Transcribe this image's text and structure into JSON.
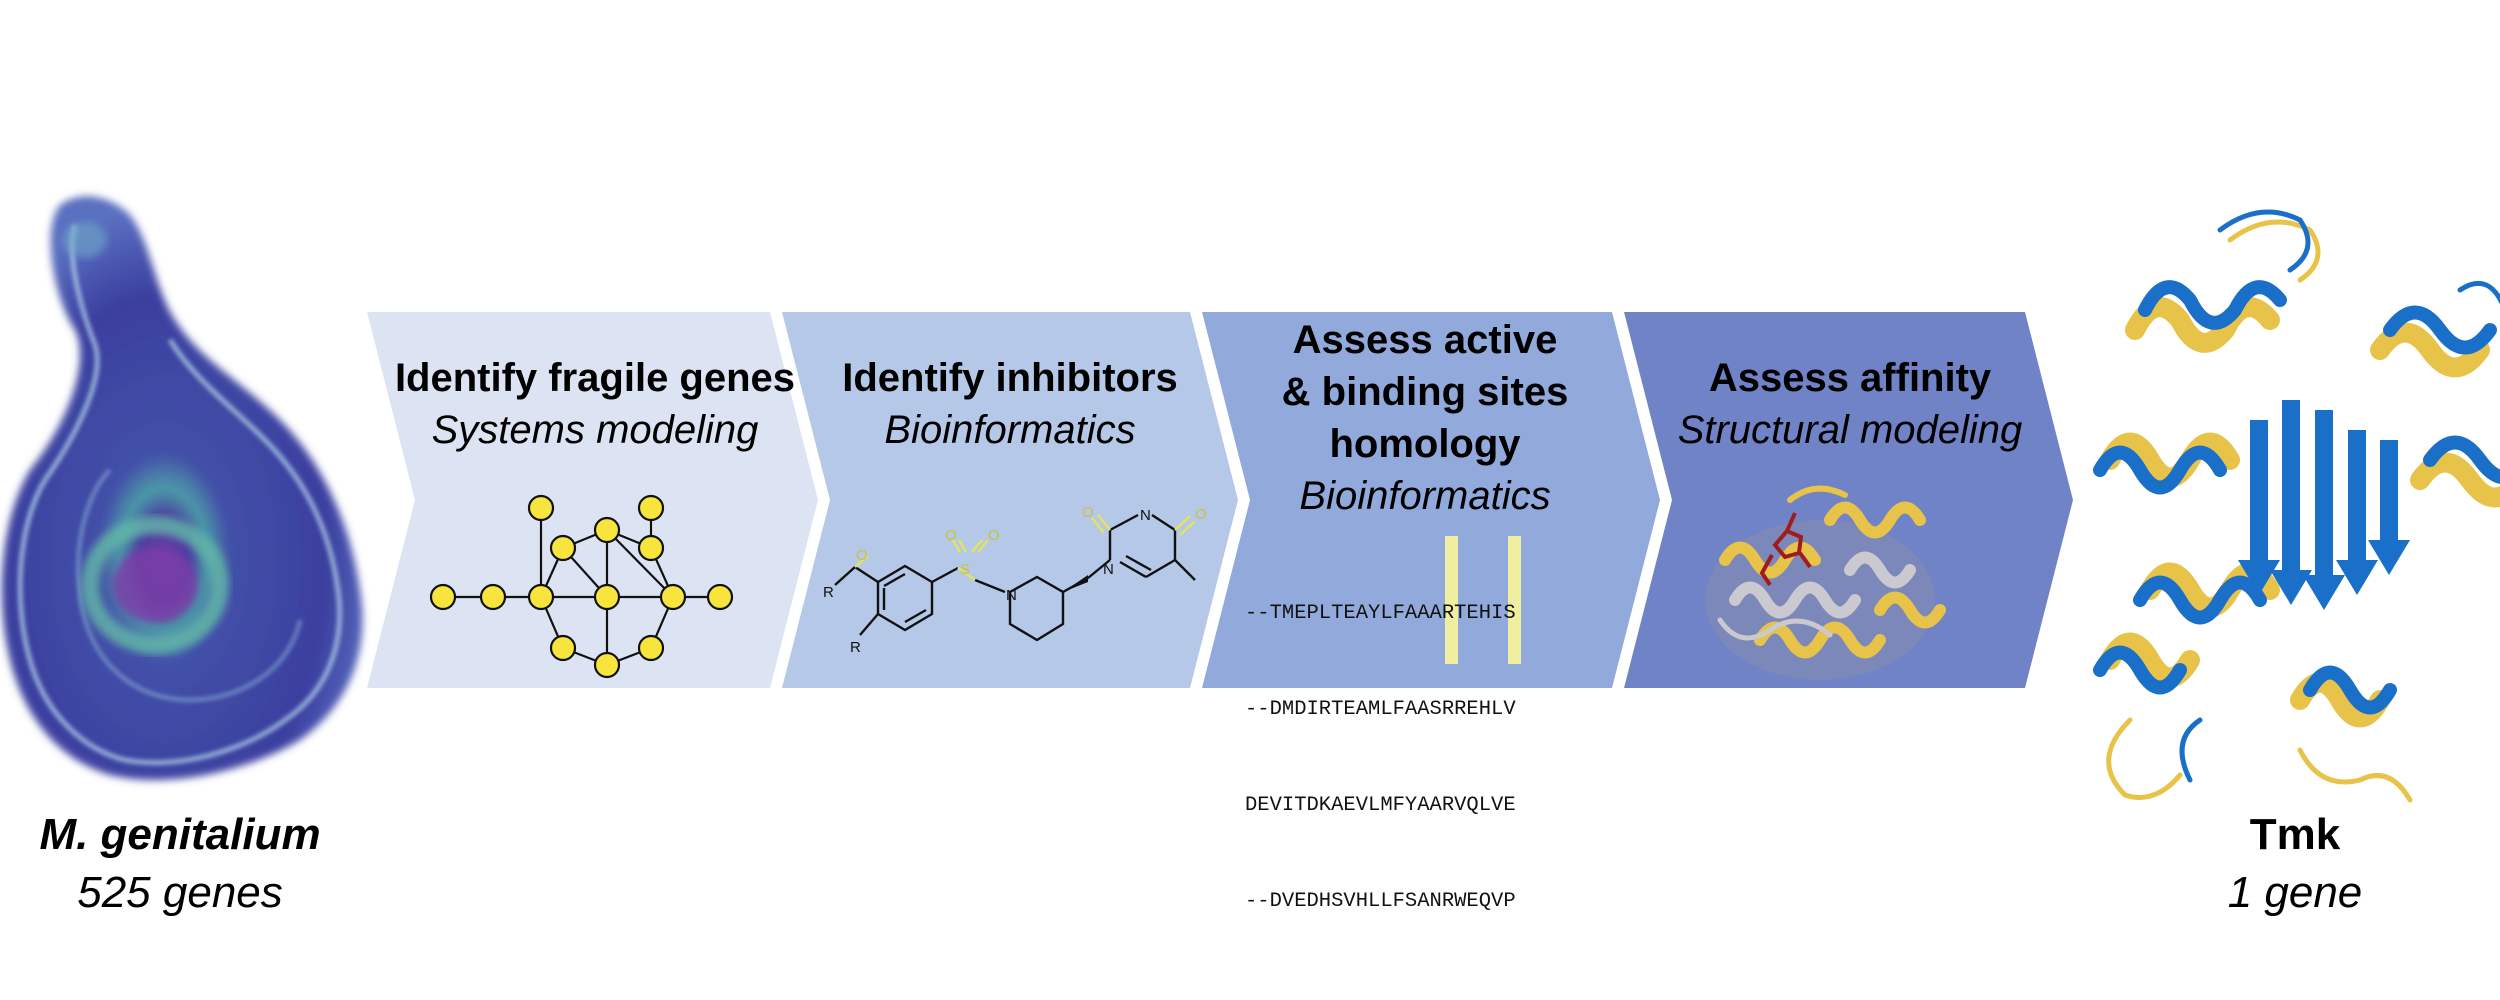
{
  "organism": {
    "name": "M. genitalium",
    "count": "525 genes"
  },
  "target": {
    "name": "Tmk",
    "count": "1 gene"
  },
  "steps": [
    {
      "title": "Identify fragile genes",
      "subtitle": "Systems modeling",
      "color": "#dce3f3"
    },
    {
      "title": "Identify inhibitors",
      "subtitle": "Bioinformatics",
      "color": "#b5c8e8"
    },
    {
      "title_lines": [
        "Assess active",
        "& binding sites",
        "homology"
      ],
      "subtitle": "Bioinformatics",
      "color": "#92a9dc"
    },
    {
      "title": "Assess affinity",
      "subtitle": "Structural modeling",
      "color": "#7083c6"
    }
  ],
  "molecule_labels": {
    "r1": "R",
    "r2": "R",
    "s": "S",
    "o1": "O",
    "o2": "O",
    "o3": "O",
    "o4": "O",
    "n1": "N",
    "n2": "N",
    "n3": "N"
  },
  "sequences": [
    "--TMEPLTEAYLFAAARTEHIS",
    "--DMDIRTEAMLFAASRREHLV",
    "DEVITDKAEVLMFYAARVQLVE",
    "--DVEDHSVHLLFSANRWEQVP"
  ],
  "colors": {
    "highlight": "#f2eea0",
    "node": "#f7e43c",
    "helix_blue": "#1a6fc8",
    "helix_gold": "#e8c34a"
  }
}
